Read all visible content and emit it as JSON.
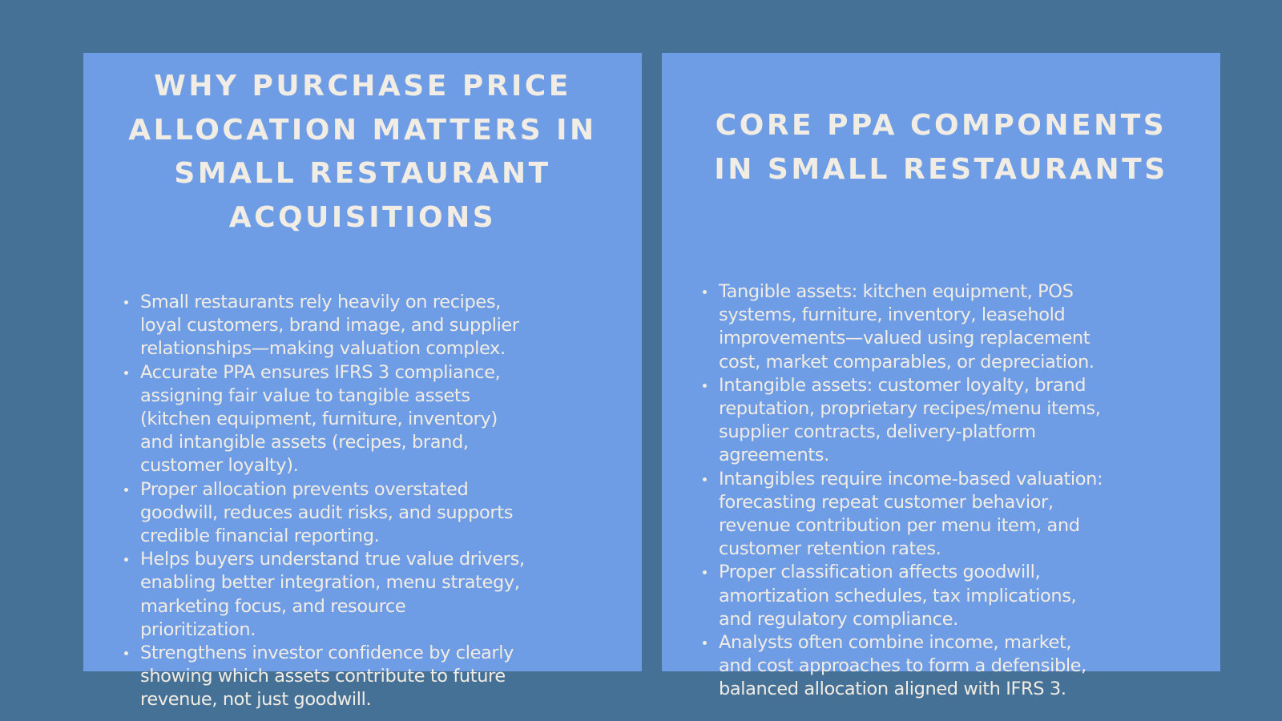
{
  "left_panel": {
    "title_lines": [
      "WHY PURCHASE PRICE",
      "ALLOCATION MATTERS IN",
      "SMALL RESTAURANT",
      "ACQUISITIONS"
    ],
    "bullets": [
      {
        "lines": [
          "Small restaurants rely heavily on recipes,",
          "loyal customers, brand image, and supplier",
          "relationships—making valuation complex."
        ]
      },
      {
        "lines": [
          "Accurate PPA ensures IFRS 3 compliance,",
          "assigning fair value to tangible assets",
          "(kitchen equipment, furniture, inventory)",
          "and intangible assets (recipes, brand,",
          "customer loyalty)."
        ]
      },
      {
        "lines": [
          "Proper allocation prevents overstated",
          "goodwill, reduces audit risks, and supports",
          "credible financial reporting."
        ]
      },
      {
        "lines": [
          "Helps buyers understand true value drivers,",
          "enabling better integration, menu strategy,",
          "marketing focus, and resource",
          "prioritization."
        ]
      },
      {
        "lines": [
          "Strengthens investor confidence by clearly",
          "showing which assets contribute to future",
          "revenue, not just goodwill."
        ]
      }
    ]
  },
  "right_panel": {
    "title_lines": [
      "CORE PPA COMPONENTS",
      "IN SMALL RESTAURANTS"
    ],
    "bullets": [
      {
        "lines": [
          "Tangible assets: kitchen equipment, POS",
          "systems, furniture, inventory, leasehold",
          "improvements—valued using replacement",
          "cost, market comparables, or depreciation."
        ]
      },
      {
        "lines": [
          "Intangible assets: customer loyalty, brand",
          "reputation, proprietary recipes/menu items,",
          "supplier contracts, delivery-platform",
          "agreements."
        ]
      },
      {
        "lines": [
          "Intangibles require income-based valuation:",
          "forecasting repeat customer behavior,",
          "revenue contribution per menu item, and",
          "customer retention rates."
        ]
      },
      {
        "lines": [
          "Proper classification affects goodwill,",
          "amortization schedules, tax implications,",
          "and regulatory compliance."
        ]
      },
      {
        "lines": [
          "Analysts often combine income, market,",
          "and cost approaches to form a defensible,",
          "balanced allocation aligned with IFRS 3."
        ]
      }
    ]
  },
  "colors": {
    "background": "#467196",
    "panel": "#6e9de5",
    "text": "#f1ece4"
  }
}
